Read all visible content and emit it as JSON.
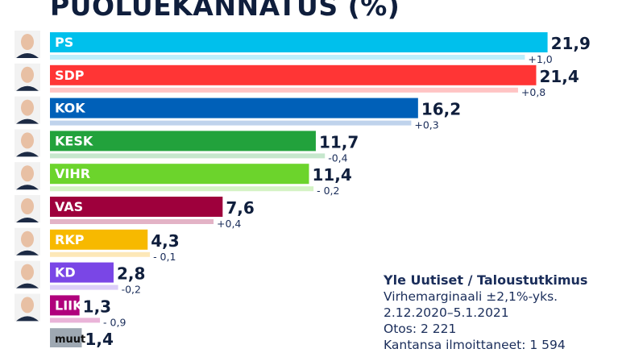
{
  "chart_data": {
    "type": "bar",
    "orientation": "horizontal",
    "title": "PUOLUEKANNATUS (%)",
    "categories": [
      "PS",
      "SDP",
      "KOK",
      "KESK",
      "VIHR",
      "VAS",
      "RKP",
      "KD",
      "LIIK",
      "muut"
    ],
    "values": [
      21.9,
      21.4,
      16.2,
      11.7,
      11.4,
      7.6,
      4.3,
      2.8,
      1.3,
      1.4
    ],
    "value_labels": [
      "21,9",
      "21,4",
      "16,2",
      "11,7",
      "11,4",
      "7,6",
      "4,3",
      "2,8",
      "1,3",
      "1,4"
    ],
    "changes": [
      1.0,
      0.8,
      0.3,
      -0.4,
      -0.2,
      0.4,
      -0.1,
      -0.2,
      -0.9,
      null
    ],
    "change_labels": [
      "+1,0",
      "+0,8",
      "+0,3",
      "-0,4",
      "- 0,2",
      "+0,4",
      "- 0,1",
      "-0,2",
      "- 0,9",
      ""
    ],
    "colors": [
      "#00c0ec",
      "#ff3535",
      "#0060b8",
      "#22a23c",
      "#6cd42c",
      "#9e003c",
      "#f7b900",
      "#7a46e6",
      "#b0007c",
      "#9ea8b2"
    ],
    "light_colors": [
      "#bdeefb",
      "#ffc4c4",
      "#bfd3ec",
      "#c6e7cd",
      "#d4f3c4",
      "#e3b3c6",
      "#fde8b8",
      "#dccdf8",
      "#eab4d8",
      ""
    ],
    "has_portrait": [
      true,
      true,
      true,
      true,
      true,
      true,
      true,
      true,
      true,
      false
    ],
    "xlim": [
      0,
      22
    ]
  },
  "info": {
    "source": "Yle Uutiset / Taloustutkimus",
    "margin": "Virhemarginaali ±2,1%-yks.",
    "period": "2.12.2020–5.1.2021",
    "sample": "Otos: 2 221",
    "respondents": "Kantansa ilmoittaneet: 1 594"
  }
}
